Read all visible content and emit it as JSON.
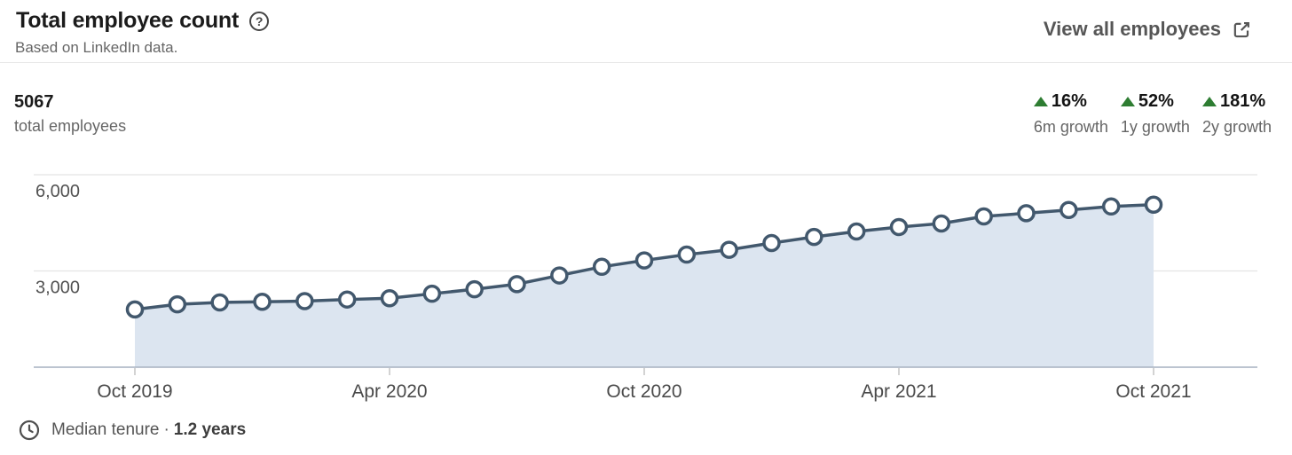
{
  "header": {
    "title": "Total employee count",
    "help_icon": "question-mark-circle",
    "subtitle": "Based on LinkedIn data.",
    "view_all_label": "View all employees",
    "external_link_icon": "external-link"
  },
  "summary": {
    "total_value": "5067",
    "total_label": "total employees",
    "positive_color": "#2e7d32",
    "growth_stats": [
      {
        "value": "16%",
        "label": "6m growth",
        "direction": "up"
      },
      {
        "value": "52%",
        "label": "1y growth",
        "direction": "up"
      },
      {
        "value": "181%",
        "label": "2y growth",
        "direction": "up"
      }
    ]
  },
  "chart_data": {
    "type": "area",
    "title": "Total employee count",
    "x": [
      "Oct 2019",
      "Nov 2019",
      "Dec 2019",
      "Jan 2020",
      "Feb 2020",
      "Mar 2020",
      "Apr 2020",
      "May 2020",
      "Jun 2020",
      "Jul 2020",
      "Aug 2020",
      "Sep 2020",
      "Oct 2020",
      "Nov 2020",
      "Dec 2020",
      "Jan 2021",
      "Feb 2021",
      "Mar 2021",
      "Apr 2021",
      "May 2021",
      "Jun 2021",
      "Jul 2021",
      "Aug 2021",
      "Sep 2021",
      "Oct 2021"
    ],
    "values": [
      1800,
      1960,
      2020,
      2040,
      2060,
      2110,
      2150,
      2290,
      2430,
      2590,
      2860,
      3130,
      3330,
      3510,
      3660,
      3870,
      4060,
      4230,
      4370,
      4480,
      4700,
      4800,
      4900,
      5010,
      5067
    ],
    "x_tick_indices": [
      0,
      6,
      12,
      18,
      24
    ],
    "y_ticks": [
      {
        "value": 3000,
        "label": "3,000"
      },
      {
        "value": 6000,
        "label": "6,000"
      }
    ],
    "ylim": [
      0,
      6000
    ],
    "grid": true,
    "legend": "none",
    "line_color": "#42586d",
    "fill_color": "#dce5f0",
    "grid_color": "#e4e4e4",
    "axis_color": "#a6b1c0",
    "tick_color": "#c8c8c8",
    "axis_label_color": "#4a4a4a",
    "marker": "circle-white"
  },
  "footer": {
    "clock_icon": "clock",
    "median_tenure_label": "Median tenure",
    "separator": "·",
    "median_tenure_value": "1.2 years"
  }
}
